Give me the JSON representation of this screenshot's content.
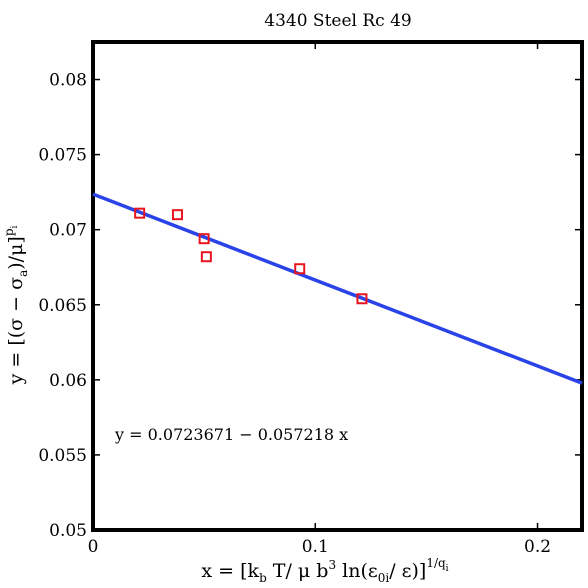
{
  "chart_data": {
    "type": "scatter",
    "title": "4340 Steel Rc 49",
    "xlabel": "x = [k_b T/ μ b^3 ln(ε_0i/ ε)]^(1/q_i)",
    "ylabel": "y = [(σ − σ_a)/μ]^(p_i)",
    "xlim": [
      0,
      0.22
    ],
    "ylim": [
      0.05,
      0.0825
    ],
    "x_ticks": [
      0,
      0.1,
      0.2
    ],
    "x_tick_labels": [
      "0",
      "0.1",
      "0.2"
    ],
    "y_ticks": [
      0.05,
      0.055,
      0.06,
      0.065,
      0.07,
      0.075,
      0.08
    ],
    "y_tick_labels": [
      "0.05",
      "0.055",
      "0.06",
      "0.065",
      "0.07",
      "0.075",
      "0.08"
    ],
    "grid": false,
    "series": [
      {
        "marker": "square",
        "color": "#e8141e",
        "points": [
          {
            "x": 0.021,
            "y": 0.0711
          },
          {
            "x": 0.038,
            "y": 0.071
          },
          {
            "x": 0.05,
            "y": 0.0694
          },
          {
            "x": 0.051,
            "y": 0.0682
          },
          {
            "x": 0.093,
            "y": 0.0674
          },
          {
            "x": 0.121,
            "y": 0.0654
          }
        ]
      },
      {
        "line": true,
        "color": "#2a43e8",
        "intercept": 0.0723671,
        "slope": -0.057218
      }
    ],
    "annotation": "y = 0.0723671 − 0.057218 x"
  }
}
